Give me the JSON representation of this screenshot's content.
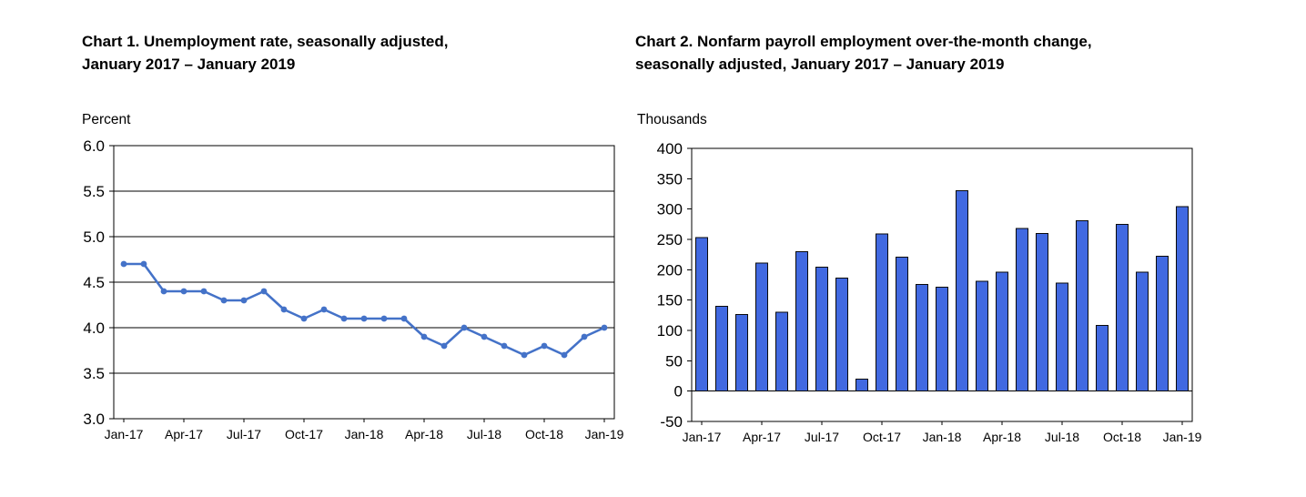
{
  "page": {
    "background_color": "#ffffff",
    "text_color": "#000000"
  },
  "chart_data": [
    {
      "type": "line",
      "title": "Chart 1. Unemployment rate, seasonally adjusted, January 2017 – January 2019",
      "title_lines": [
        "Chart 1. Unemployment rate, seasonally adjusted,",
        "January 2017 – January 2019"
      ],
      "unit_label": "Percent",
      "x": [
        "Jan-17",
        "Feb-17",
        "Mar-17",
        "Apr-17",
        "May-17",
        "Jun-17",
        "Jul-17",
        "Aug-17",
        "Sep-17",
        "Oct-17",
        "Nov-17",
        "Dec-17",
        "Jan-18",
        "Feb-18",
        "Mar-18",
        "Apr-18",
        "May-18",
        "Jun-18",
        "Jul-18",
        "Aug-18",
        "Sep-18",
        "Oct-18",
        "Nov-18",
        "Dec-18",
        "Jan-19"
      ],
      "values": [
        4.7,
        4.7,
        4.4,
        4.4,
        4.4,
        4.3,
        4.3,
        4.4,
        4.2,
        4.1,
        4.2,
        4.1,
        4.1,
        4.1,
        4.1,
        3.9,
        3.8,
        4.0,
        3.9,
        3.8,
        3.7,
        3.8,
        3.7,
        3.9,
        4.0
      ],
      "ylim": [
        3.0,
        6.0
      ],
      "ytick_values": [
        6.0,
        5.5,
        5.0,
        4.5,
        4.0,
        3.5,
        3.0
      ],
      "ytick_labels": [
        "6.0",
        "5.5",
        "5.0",
        "4.5",
        "4.0",
        "3.5",
        "3.0"
      ],
      "xtick_labels": [
        "Jan-17",
        "Apr-17",
        "Jul-17",
        "Oct-17",
        "Jan-18",
        "Apr-18",
        "Jul-18",
        "Oct-18",
        "Jan-19"
      ],
      "xtick_every": 3,
      "grid": true,
      "zero_line": false,
      "line_color": "#4472C8"
    },
    {
      "type": "bar",
      "title": "Chart 2. Nonfarm payroll employment over-the-month change, seasonally adjusted, January 2017 – January 2019",
      "title_lines": [
        "Chart 2. Nonfarm payroll employment over-the-month change,",
        "seasonally adjusted, January 2017 – January 2019"
      ],
      "unit_label": "Thousands",
      "x": [
        "Jan-17",
        "Feb-17",
        "Mar-17",
        "Apr-17",
        "May-17",
        "Jun-17",
        "Jul-17",
        "Aug-17",
        "Sep-17",
        "Oct-17",
        "Nov-17",
        "Dec-17",
        "Jan-18",
        "Feb-18",
        "Mar-18",
        "Apr-18",
        "May-18",
        "Jun-18",
        "Jul-18",
        "Aug-18",
        "Sep-18",
        "Oct-18",
        "Nov-18",
        "Dec-18",
        "Jan-19"
      ],
      "values": [
        253,
        140,
        126,
        211,
        130,
        230,
        204,
        186,
        20,
        259,
        221,
        176,
        171,
        330,
        181,
        196,
        268,
        260,
        178,
        281,
        108,
        275,
        196,
        222,
        304
      ],
      "ylim": [
        -50,
        400
      ],
      "ytick_values": [
        400,
        350,
        300,
        250,
        200,
        150,
        100,
        50,
        0,
        -50
      ],
      "ytick_labels": [
        "400",
        "350",
        "300",
        "250",
        "200",
        "150",
        "100",
        "50",
        "0",
        "-50"
      ],
      "xtick_labels": [
        "Jan-17",
        "Apr-17",
        "Jul-17",
        "Oct-17",
        "Jan-18",
        "Apr-18",
        "Jul-18",
        "Oct-18",
        "Jan-19"
      ],
      "xtick_every": 3,
      "grid": false,
      "zero_line": true,
      "bar_color": "#4169E1",
      "bar_border_color": "#0a0a0a"
    }
  ]
}
